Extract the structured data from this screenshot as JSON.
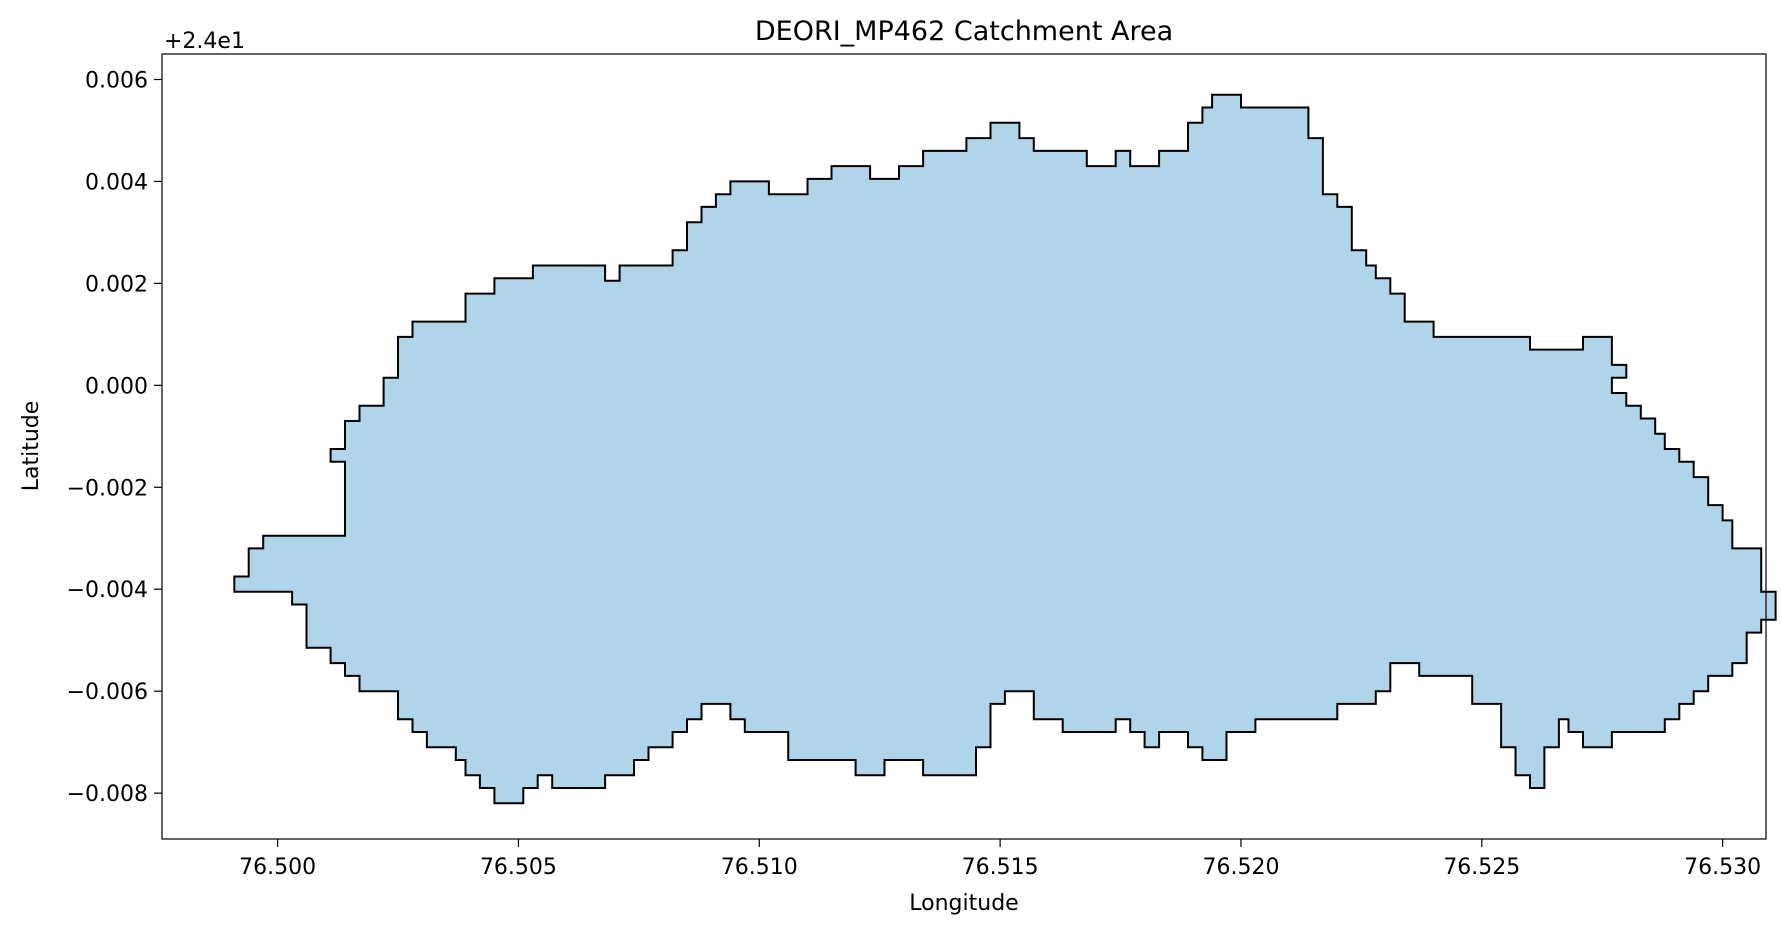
{
  "chart_data": {
    "type": "area",
    "title": "DEORI_MP462 Catchment Area",
    "xlabel": "Longitude",
    "ylabel": "Latitude",
    "y_offset_text": "+2.4e1",
    "xlim": [
      76.4976,
      76.5309
    ],
    "ylim": [
      -0.0089,
      0.0065
    ],
    "x_ticks": [
      76.5,
      76.505,
      76.51,
      76.515,
      76.52,
      76.525,
      76.53
    ],
    "x_tick_labels": [
      "76.500",
      "76.505",
      "76.510",
      "76.515",
      "76.520",
      "76.525",
      "76.530"
    ],
    "y_ticks": [
      0.006,
      0.004,
      0.002,
      0.0,
      -0.002,
      -0.004,
      -0.006,
      -0.008
    ],
    "y_tick_labels": [
      "0.006",
      "0.004",
      "0.002",
      "0.000",
      "−0.002",
      "−0.004",
      "−0.006",
      "−0.008"
    ],
    "grid": false,
    "fill_color": "#b0d4e9",
    "edge_color": "#000000",
    "boundary": [
      [
        76.5025,
        0.00095
      ],
      [
        76.5028,
        0.00095
      ],
      [
        76.5028,
        0.00125
      ],
      [
        76.5039,
        0.00125
      ],
      [
        76.5039,
        0.0018
      ],
      [
        76.5045,
        0.0018
      ],
      [
        76.5045,
        0.0021
      ],
      [
        76.5053,
        0.0021
      ],
      [
        76.5053,
        0.00235
      ],
      [
        76.5068,
        0.00235
      ],
      [
        76.5068,
        0.00205
      ],
      [
        76.5071,
        0.00205
      ],
      [
        76.5071,
        0.00235
      ],
      [
        76.5082,
        0.00235
      ],
      [
        76.5082,
        0.00265
      ],
      [
        76.5085,
        0.00265
      ],
      [
        76.5085,
        0.0032
      ],
      [
        76.5088,
        0.0032
      ],
      [
        76.5088,
        0.0035
      ],
      [
        76.5091,
        0.0035
      ],
      [
        76.5091,
        0.00375
      ],
      [
        76.5094,
        0.00375
      ],
      [
        76.5094,
        0.004
      ],
      [
        76.5102,
        0.004
      ],
      [
        76.5102,
        0.00375
      ],
      [
        76.511,
        0.00375
      ],
      [
        76.511,
        0.00405
      ],
      [
        76.5115,
        0.00405
      ],
      [
        76.5115,
        0.0043
      ],
      [
        76.5123,
        0.0043
      ],
      [
        76.5123,
        0.00405
      ],
      [
        76.5129,
        0.00405
      ],
      [
        76.5129,
        0.0043
      ],
      [
        76.5134,
        0.0043
      ],
      [
        76.5134,
        0.0046
      ],
      [
        76.5143,
        0.0046
      ],
      [
        76.5143,
        0.00485
      ],
      [
        76.5148,
        0.00485
      ],
      [
        76.5148,
        0.00515
      ],
      [
        76.5154,
        0.00515
      ],
      [
        76.5154,
        0.00485
      ],
      [
        76.5157,
        0.00485
      ],
      [
        76.5157,
        0.0046
      ],
      [
        76.5168,
        0.0046
      ],
      [
        76.5168,
        0.0043
      ],
      [
        76.5174,
        0.0043
      ],
      [
        76.5174,
        0.0046
      ],
      [
        76.5177,
        0.0046
      ],
      [
        76.5177,
        0.0043
      ],
      [
        76.5183,
        0.0043
      ],
      [
        76.5183,
        0.0046
      ],
      [
        76.5189,
        0.0046
      ],
      [
        76.5189,
        0.00515
      ],
      [
        76.5192,
        0.00515
      ],
      [
        76.5192,
        0.00545
      ],
      [
        76.5194,
        0.00545
      ],
      [
        76.5194,
        0.0057
      ],
      [
        76.52,
        0.0057
      ],
      [
        76.52,
        0.00545
      ],
      [
        76.5214,
        0.00545
      ],
      [
        76.5214,
        0.00485
      ],
      [
        76.5217,
        0.00485
      ],
      [
        76.5217,
        0.00375
      ],
      [
        76.522,
        0.00375
      ],
      [
        76.522,
        0.0035
      ],
      [
        76.5223,
        0.0035
      ],
      [
        76.5223,
        0.00265
      ],
      [
        76.5226,
        0.00265
      ],
      [
        76.5226,
        0.00235
      ],
      [
        76.5228,
        0.00235
      ],
      [
        76.5228,
        0.0021
      ],
      [
        76.5231,
        0.0021
      ],
      [
        76.5231,
        0.0018
      ],
      [
        76.5234,
        0.0018
      ],
      [
        76.5234,
        0.00125
      ],
      [
        76.524,
        0.00125
      ],
      [
        76.524,
        0.00095
      ],
      [
        76.526,
        0.00095
      ],
      [
        76.526,
        0.0007
      ],
      [
        76.5271,
        0.0007
      ],
      [
        76.5271,
        0.00095
      ],
      [
        76.5277,
        0.00095
      ],
      [
        76.5277,
        0.0004
      ],
      [
        76.528,
        0.0004
      ],
      [
        76.528,
        0.00015
      ],
      [
        76.5277,
        0.00015
      ],
      [
        76.5277,
        -0.00015
      ],
      [
        76.528,
        -0.00015
      ],
      [
        76.528,
        -0.0004
      ],
      [
        76.5283,
        -0.0004
      ],
      [
        76.5283,
        -0.00065
      ],
      [
        76.5286,
        -0.00065
      ],
      [
        76.5286,
        -0.00095
      ],
      [
        76.5288,
        -0.00095
      ],
      [
        76.5288,
        -0.00125
      ],
      [
        76.5291,
        -0.00125
      ],
      [
        76.5291,
        -0.0015
      ],
      [
        76.5294,
        -0.0015
      ],
      [
        76.5294,
        -0.0018
      ],
      [
        76.5297,
        -0.0018
      ],
      [
        76.5297,
        -0.00235
      ],
      [
        76.53,
        -0.00235
      ],
      [
        76.53,
        -0.00265
      ],
      [
        76.5302,
        -0.00265
      ],
      [
        76.5302,
        -0.0032
      ],
      [
        76.5308,
        -0.0032
      ],
      [
        76.5308,
        -0.00405
      ],
      [
        76.5311,
        -0.00405
      ],
      [
        76.5311,
        -0.0046
      ],
      [
        76.5308,
        -0.0046
      ],
      [
        76.5308,
        -0.00485
      ],
      [
        76.5305,
        -0.00485
      ],
      [
        76.5305,
        -0.00545
      ],
      [
        76.5302,
        -0.00545
      ],
      [
        76.5302,
        -0.0057
      ],
      [
        76.5297,
        -0.0057
      ],
      [
        76.5297,
        -0.006
      ],
      [
        76.5294,
        -0.006
      ],
      [
        76.5294,
        -0.00625
      ],
      [
        76.5291,
        -0.00625
      ],
      [
        76.5291,
        -0.00655
      ],
      [
        76.5288,
        -0.00655
      ],
      [
        76.5288,
        -0.0068
      ],
      [
        76.5277,
        -0.0068
      ],
      [
        76.5277,
        -0.0071
      ],
      [
        76.5271,
        -0.0071
      ],
      [
        76.5271,
        -0.0068
      ],
      [
        76.5268,
        -0.0068
      ],
      [
        76.5268,
        -0.00655
      ],
      [
        76.5266,
        -0.00655
      ],
      [
        76.5266,
        -0.0071
      ],
      [
        76.5263,
        -0.0071
      ],
      [
        76.5263,
        -0.0079
      ],
      [
        76.526,
        -0.0079
      ],
      [
        76.526,
        -0.00765
      ],
      [
        76.5257,
        -0.00765
      ],
      [
        76.5257,
        -0.0071
      ],
      [
        76.5254,
        -0.0071
      ],
      [
        76.5254,
        -0.00625
      ],
      [
        76.5248,
        -0.00625
      ],
      [
        76.5248,
        -0.0057
      ],
      [
        76.5237,
        -0.0057
      ],
      [
        76.5237,
        -0.00545
      ],
      [
        76.5231,
        -0.00545
      ],
      [
        76.5231,
        -0.006
      ],
      [
        76.5228,
        -0.006
      ],
      [
        76.5228,
        -0.00625
      ],
      [
        76.522,
        -0.00625
      ],
      [
        76.522,
        -0.00655
      ],
      [
        76.5203,
        -0.00655
      ],
      [
        76.5203,
        -0.0068
      ],
      [
        76.5197,
        -0.0068
      ],
      [
        76.5197,
        -0.00735
      ],
      [
        76.5192,
        -0.00735
      ],
      [
        76.5192,
        -0.0071
      ],
      [
        76.5189,
        -0.0071
      ],
      [
        76.5189,
        -0.0068
      ],
      [
        76.5183,
        -0.0068
      ],
      [
        76.5183,
        -0.0071
      ],
      [
        76.518,
        -0.0071
      ],
      [
        76.518,
        -0.0068
      ],
      [
        76.5177,
        -0.0068
      ],
      [
        76.5177,
        -0.00655
      ],
      [
        76.5174,
        -0.00655
      ],
      [
        76.5174,
        -0.0068
      ],
      [
        76.5163,
        -0.0068
      ],
      [
        76.5163,
        -0.00655
      ],
      [
        76.5157,
        -0.00655
      ],
      [
        76.5157,
        -0.006
      ],
      [
        76.5151,
        -0.006
      ],
      [
        76.5151,
        -0.00625
      ],
      [
        76.5148,
        -0.00625
      ],
      [
        76.5148,
        -0.0071
      ],
      [
        76.5145,
        -0.0071
      ],
      [
        76.5145,
        -0.00765
      ],
      [
        76.5134,
        -0.00765
      ],
      [
        76.5134,
        -0.00735
      ],
      [
        76.5126,
        -0.00735
      ],
      [
        76.5126,
        -0.00765
      ],
      [
        76.512,
        -0.00765
      ],
      [
        76.512,
        -0.00735
      ],
      [
        76.5106,
        -0.00735
      ],
      [
        76.5106,
        -0.0068
      ],
      [
        76.5097,
        -0.0068
      ],
      [
        76.5097,
        -0.00655
      ],
      [
        76.5094,
        -0.00655
      ],
      [
        76.5094,
        -0.00625
      ],
      [
        76.5088,
        -0.00625
      ],
      [
        76.5088,
        -0.00655
      ],
      [
        76.5085,
        -0.00655
      ],
      [
        76.5085,
        -0.0068
      ],
      [
        76.5082,
        -0.0068
      ],
      [
        76.5082,
        -0.0071
      ],
      [
        76.5077,
        -0.0071
      ],
      [
        76.5077,
        -0.00735
      ],
      [
        76.5074,
        -0.00735
      ],
      [
        76.5074,
        -0.00765
      ],
      [
        76.5068,
        -0.00765
      ],
      [
        76.5068,
        -0.0079
      ],
      [
        76.5057,
        -0.0079
      ],
      [
        76.5057,
        -0.00765
      ],
      [
        76.5054,
        -0.00765
      ],
      [
        76.5054,
        -0.0079
      ],
      [
        76.5051,
        -0.0079
      ],
      [
        76.5051,
        -0.0082
      ],
      [
        76.5045,
        -0.0082
      ],
      [
        76.5045,
        -0.0079
      ],
      [
        76.5042,
        -0.0079
      ],
      [
        76.5042,
        -0.00765
      ],
      [
        76.5039,
        -0.00765
      ],
      [
        76.5039,
        -0.00735
      ],
      [
        76.5037,
        -0.00735
      ],
      [
        76.5037,
        -0.0071
      ],
      [
        76.5031,
        -0.0071
      ],
      [
        76.5031,
        -0.0068
      ],
      [
        76.5028,
        -0.0068
      ],
      [
        76.5028,
        -0.00655
      ],
      [
        76.5025,
        -0.00655
      ],
      [
        76.5025,
        -0.006
      ],
      [
        76.5017,
        -0.006
      ],
      [
        76.5017,
        -0.0057
      ],
      [
        76.5014,
        -0.0057
      ],
      [
        76.5014,
        -0.00545
      ],
      [
        76.5011,
        -0.00545
      ],
      [
        76.5011,
        -0.00515
      ],
      [
        76.5006,
        -0.00515
      ],
      [
        76.5006,
        -0.0043
      ],
      [
        76.5003,
        -0.0043
      ],
      [
        76.5003,
        -0.00405
      ],
      [
        76.4991,
        -0.00405
      ],
      [
        76.4991,
        -0.00375
      ],
      [
        76.4994,
        -0.00375
      ],
      [
        76.4994,
        -0.0032
      ],
      [
        76.4997,
        -0.0032
      ],
      [
        76.4997,
        -0.00295
      ],
      [
        76.5014,
        -0.00295
      ],
      [
        76.5014,
        -0.0015
      ],
      [
        76.5011,
        -0.0015
      ],
      [
        76.5011,
        -0.00125
      ],
      [
        76.5014,
        -0.00125
      ],
      [
        76.5014,
        -0.0007
      ],
      [
        76.5017,
        -0.0007
      ],
      [
        76.5017,
        -0.0004
      ],
      [
        76.5022,
        -0.0004
      ],
      [
        76.5022,
        0.00015
      ],
      [
        76.5025,
        0.00015
      ]
    ]
  }
}
